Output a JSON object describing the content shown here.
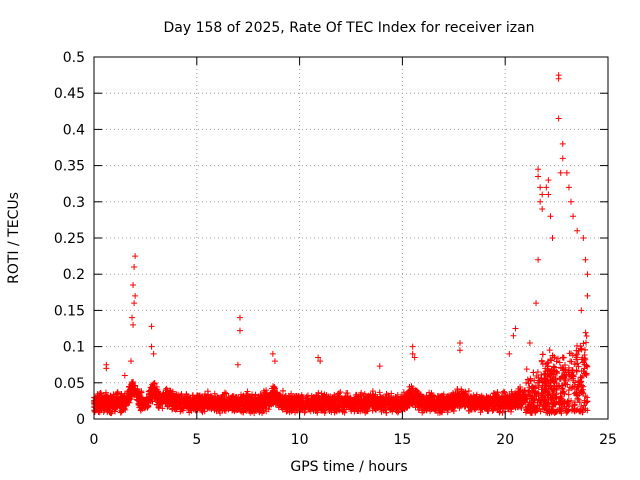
{
  "chart_data": {
    "type": "scatter",
    "title": "Day 158 of 2025, Rate Of TEC Index for receiver izan",
    "xlabel": "GPS time / hours",
    "ylabel": "ROTI / TECUs",
    "xlim": [
      0,
      25
    ],
    "ylim": [
      0,
      0.5
    ],
    "xticks": [
      0,
      5,
      10,
      15,
      20,
      25
    ],
    "yticks": [
      0,
      0.05,
      0.1,
      0.15,
      0.2,
      0.25,
      0.3,
      0.35,
      0.4,
      0.45,
      0.5
    ],
    "grid": true,
    "marker": "plus",
    "color": "#ff0000",
    "points": [
      [
        0.6,
        0.07
      ],
      [
        0.6,
        0.075
      ],
      [
        1.5,
        0.06
      ],
      [
        1.8,
        0.08
      ],
      [
        1.85,
        0.14
      ],
      [
        1.9,
        0.185
      ],
      [
        1.95,
        0.21
      ],
      [
        2.0,
        0.225
      ],
      [
        1.9,
        0.13
      ],
      [
        1.95,
        0.16
      ],
      [
        2.0,
        0.17
      ],
      [
        2.8,
        0.128
      ],
      [
        2.8,
        0.1
      ],
      [
        2.9,
        0.09
      ],
      [
        7.1,
        0.14
      ],
      [
        7.1,
        0.122
      ],
      [
        7.0,
        0.075
      ],
      [
        8.7,
        0.09
      ],
      [
        8.8,
        0.08
      ],
      [
        10.9,
        0.085
      ],
      [
        11.0,
        0.08
      ],
      [
        13.9,
        0.073
      ],
      [
        15.5,
        0.1
      ],
      [
        15.5,
        0.09
      ],
      [
        15.6,
        0.085
      ],
      [
        17.8,
        0.105
      ],
      [
        17.8,
        0.095
      ],
      [
        20.4,
        0.115
      ],
      [
        20.5,
        0.125
      ],
      [
        20.2,
        0.09
      ],
      [
        21.2,
        0.105
      ],
      [
        21.5,
        0.16
      ],
      [
        21.6,
        0.22
      ],
      [
        21.6,
        0.345
      ],
      [
        21.6,
        0.335
      ],
      [
        21.7,
        0.32
      ],
      [
        21.7,
        0.3
      ],
      [
        21.8,
        0.31
      ],
      [
        21.8,
        0.29
      ],
      [
        22.0,
        0.32
      ],
      [
        22.1,
        0.31
      ],
      [
        22.1,
        0.33
      ],
      [
        22.2,
        0.28
      ],
      [
        22.3,
        0.25
      ],
      [
        22.6,
        0.475
      ],
      [
        22.6,
        0.47
      ],
      [
        22.6,
        0.415
      ],
      [
        22.8,
        0.38
      ],
      [
        22.8,
        0.36
      ],
      [
        22.7,
        0.34
      ],
      [
        23.0,
        0.34
      ],
      [
        23.1,
        0.32
      ],
      [
        23.2,
        0.3
      ],
      [
        23.3,
        0.28
      ],
      [
        23.5,
        0.26
      ],
      [
        23.8,
        0.25
      ],
      [
        23.9,
        0.22
      ],
      [
        24.0,
        0.2
      ],
      [
        24.0,
        0.17
      ],
      [
        23.7,
        0.15
      ]
    ]
  }
}
